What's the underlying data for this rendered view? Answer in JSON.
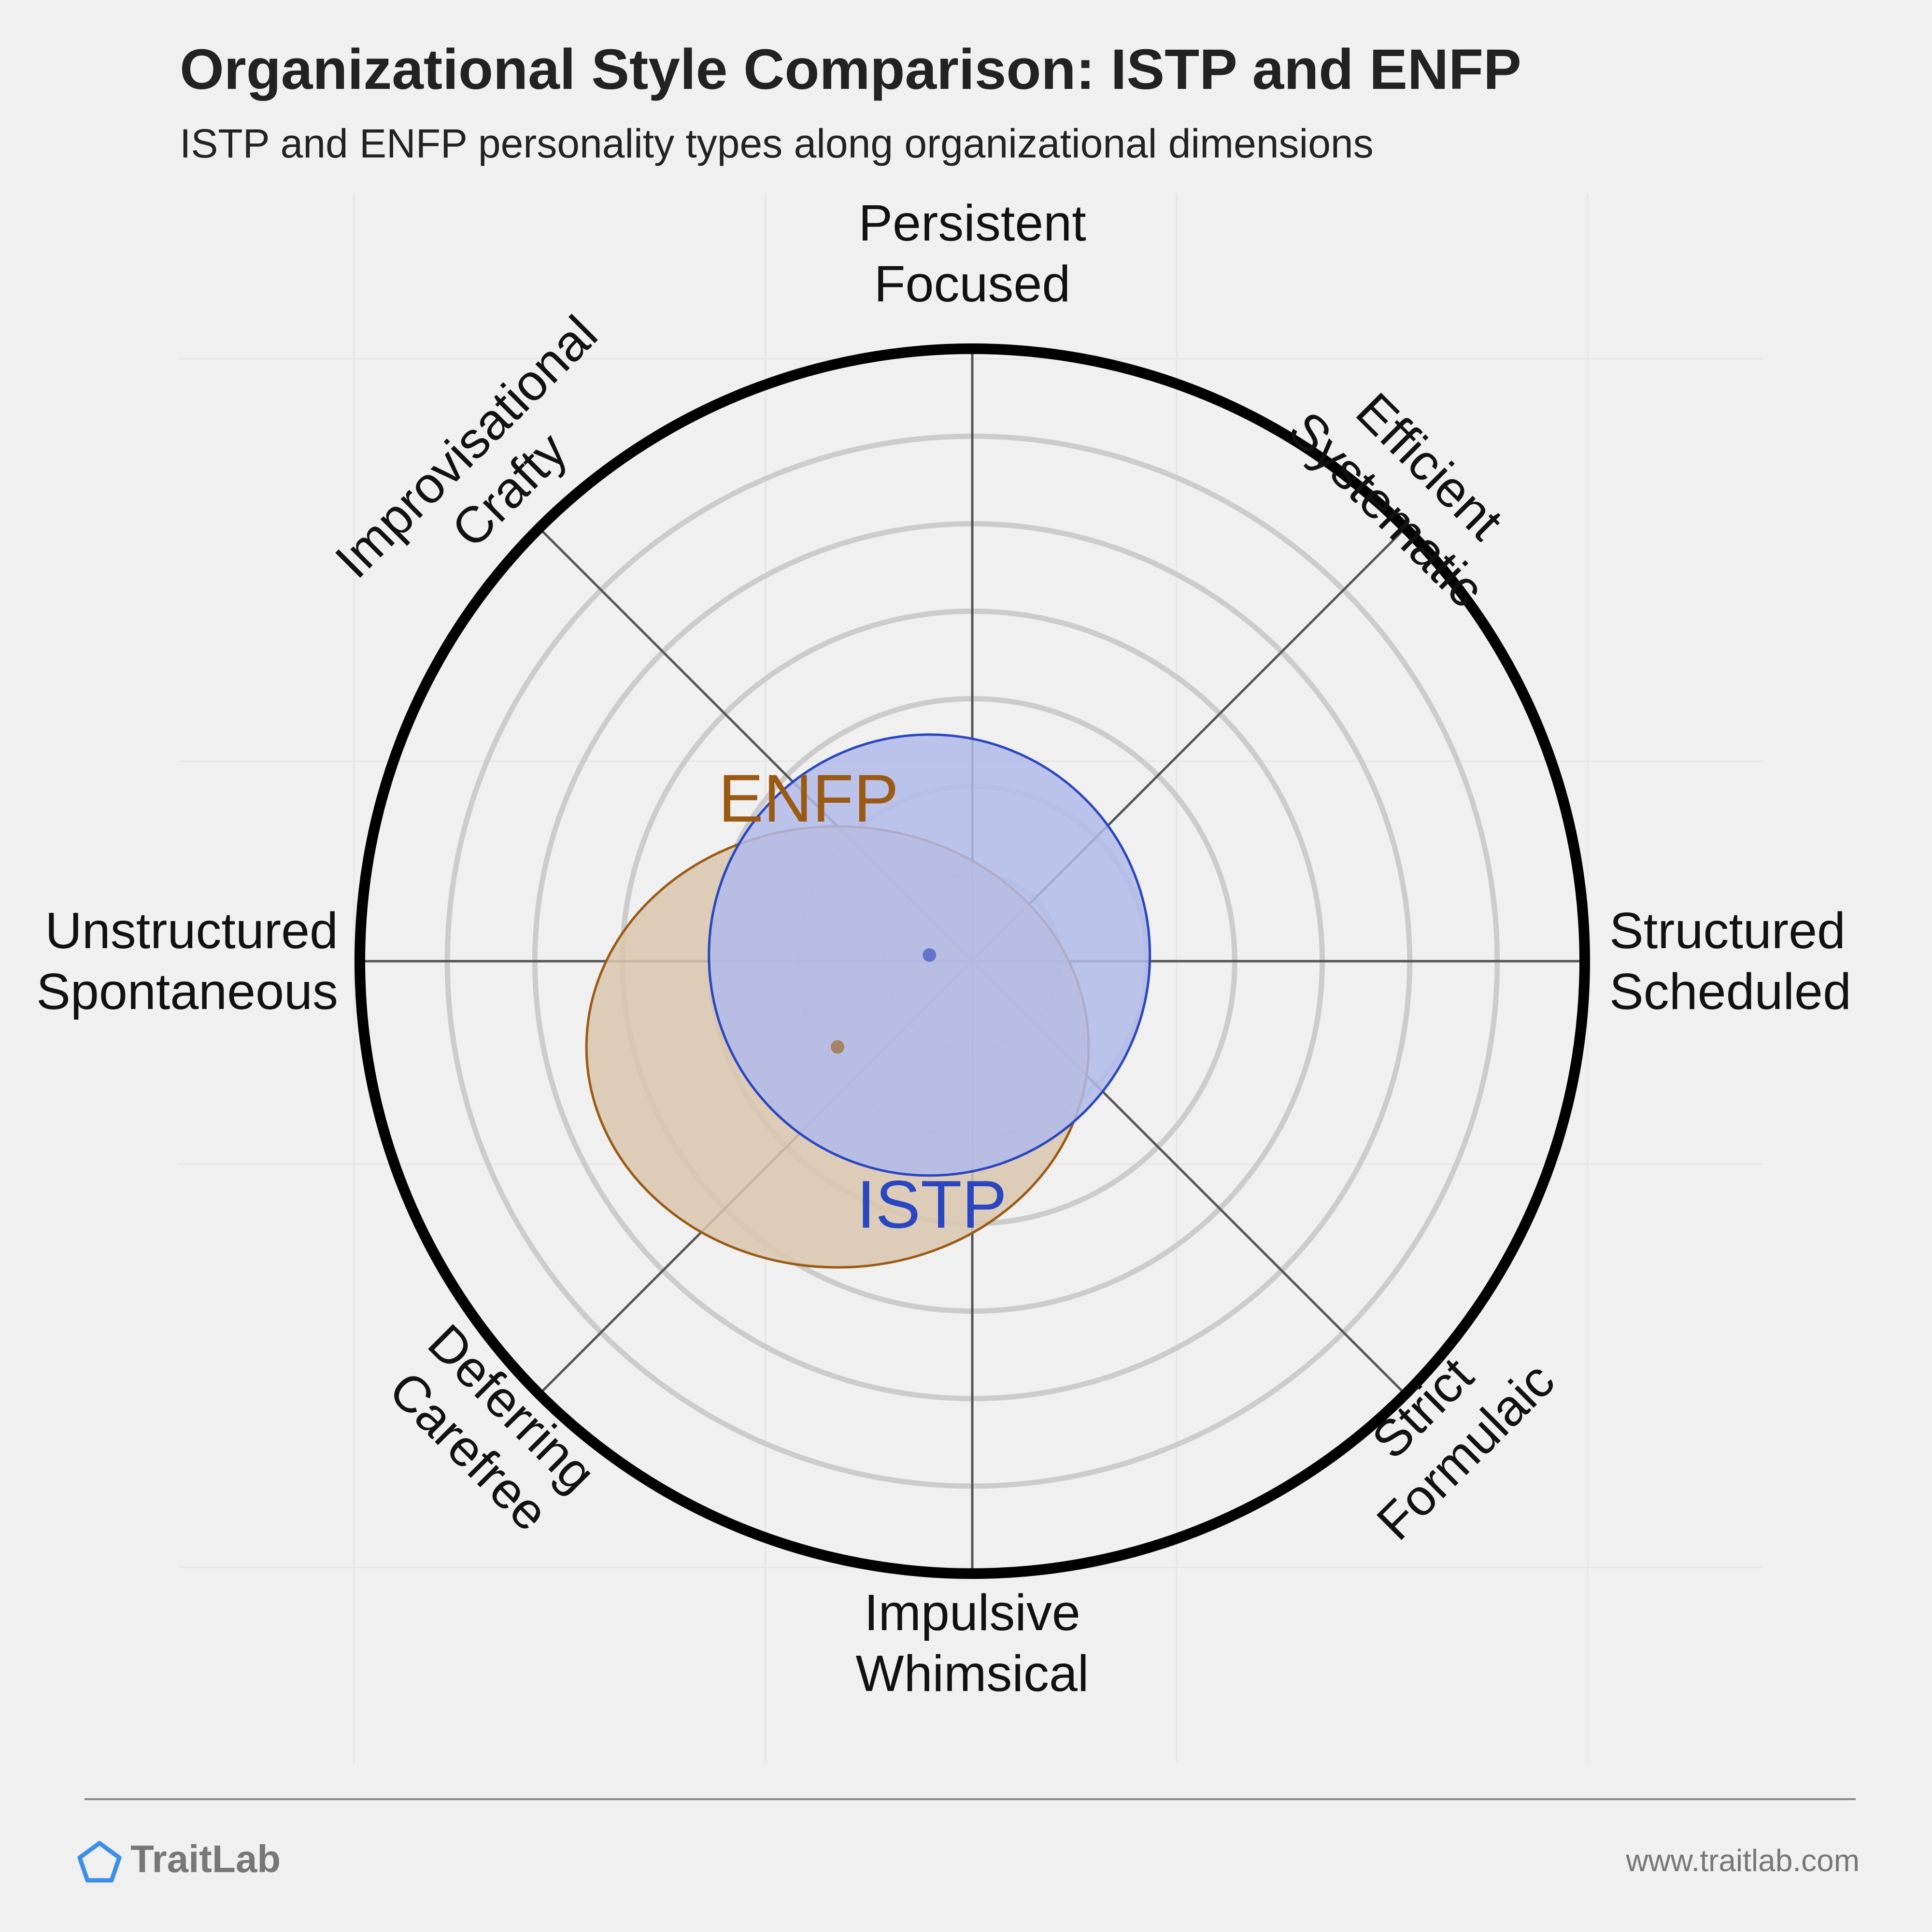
{
  "chart_data": {
    "type": "radar",
    "title": "Organizational Style Comparison: ISTP and ENFP",
    "subtitle": "ISTP and ENFP personality types along organizational dimensions",
    "axes": [
      {
        "direction": "top",
        "lines": [
          "Persistent",
          "Focused"
        ]
      },
      {
        "direction": "top-right",
        "lines": [
          "Efficient",
          "Systematic"
        ]
      },
      {
        "direction": "right",
        "lines": [
          "Structured",
          "Scheduled"
        ]
      },
      {
        "direction": "bottom-right",
        "lines": [
          "Strict",
          "Formulaic"
        ]
      },
      {
        "direction": "bottom",
        "lines": [
          "Impulsive",
          "Whimsical"
        ]
      },
      {
        "direction": "bottom-left",
        "lines": [
          "Deferring",
          "Carefree"
        ]
      },
      {
        "direction": "left",
        "lines": [
          "Unstructured",
          "Spontaneous"
        ]
      },
      {
        "direction": "top-left",
        "lines": [
          "Improvisational",
          "Crafty"
        ]
      }
    ],
    "ring_count": 6,
    "grid": true,
    "series": [
      {
        "name": "ISTP",
        "color": "#2a46c0",
        "fill": "#b2bbea",
        "center": {
          "x": -0.07,
          "y": 0.01
        },
        "radius": 0.36,
        "label_position": "bottom"
      },
      {
        "name": "ENFP",
        "color": "#9a5a14",
        "fill": "#d8c6ae",
        "center": {
          "x": -0.22,
          "y": -0.14
        },
        "radius_x": 0.41,
        "radius_y": 0.36,
        "label_position": "top"
      }
    ]
  },
  "footer": {
    "brand": "TraitLab",
    "url": "www.traitlab.com",
    "brand_color": "#3b8fe6"
  }
}
